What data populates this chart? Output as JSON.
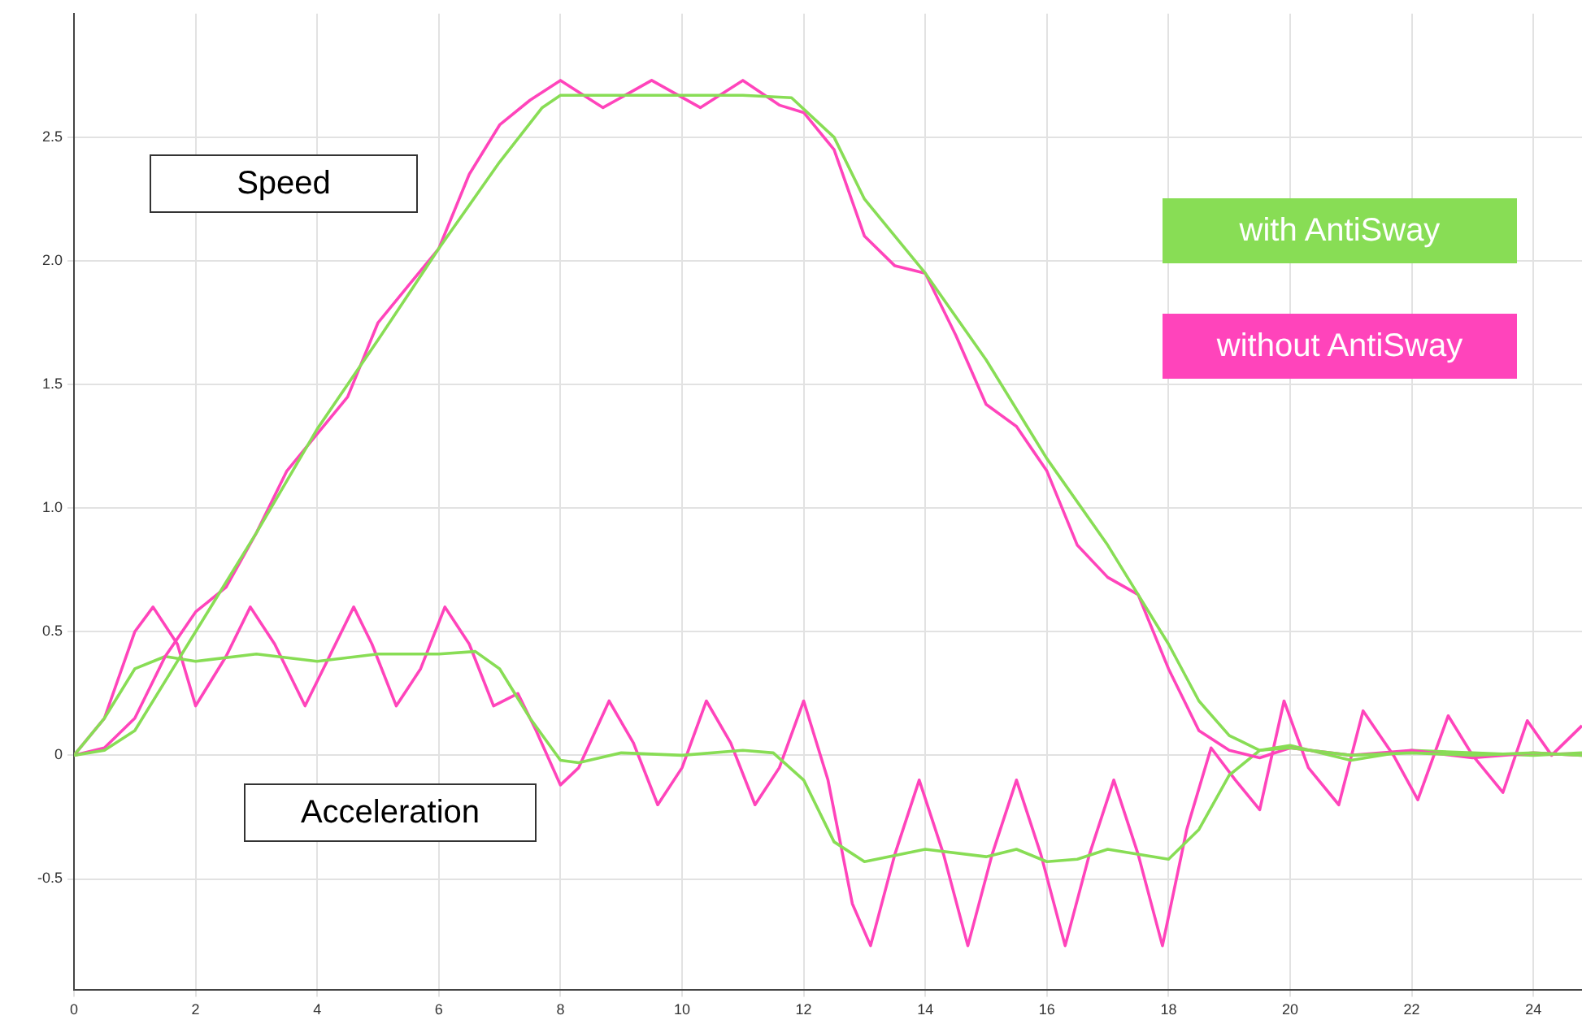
{
  "chart_data": {
    "type": "line",
    "xlim": [
      0,
      24.8
    ],
    "ylim": [
      -0.95,
      3.0
    ],
    "xticks": [
      0,
      2,
      4,
      6,
      8,
      10,
      12,
      14,
      16,
      18,
      20,
      22,
      24
    ],
    "yticks": [
      {
        "value": -0.5,
        "label": "-0.5"
      },
      0,
      0.5,
      {
        "value": 1,
        "label": "1.0"
      },
      {
        "value": 1.5,
        "label": "1.5"
      },
      {
        "value": 2,
        "label": "2.0"
      },
      2.5
    ],
    "grid": true,
    "legend": "top right",
    "marker": "none",
    "line_style": "solid",
    "annotations": [
      "Speed",
      "Acceleration"
    ],
    "series": [
      {
        "name": "with AntiSway",
        "color": "#88dd55",
        "x": [
          0,
          0.5,
          1,
          1.5,
          2,
          3,
          4,
          5,
          6,
          7,
          7.7,
          8,
          9,
          10,
          11,
          11.8,
          12.5,
          13,
          14,
          15,
          16,
          17,
          17.5,
          18,
          18.5,
          19,
          19.5,
          20,
          21,
          22,
          23,
          24,
          24.8
        ],
        "values": [
          0,
          0.02,
          0.1,
          0.3,
          0.5,
          0.9,
          1.32,
          1.68,
          2.05,
          2.4,
          2.62,
          2.67,
          2.67,
          2.67,
          2.67,
          2.66,
          2.5,
          2.25,
          1.95,
          1.6,
          1.2,
          0.85,
          0.65,
          0.45,
          0.22,
          0.08,
          0.02,
          0.03,
          0,
          0.01,
          0,
          0.01,
          0
        ]
      },
      {
        "name": "without AntiSway",
        "color": "#ff44bb",
        "x": [
          0,
          0.5,
          1,
          1.5,
          2,
          2.5,
          3,
          3.5,
          4,
          4.5,
          5,
          5.5,
          6,
          6.5,
          7,
          7.5,
          8,
          8.7,
          9.5,
          10.3,
          11,
          11.6,
          12,
          12.5,
          13,
          13.5,
          14,
          14.5,
          15,
          15.5,
          16,
          16.5,
          17,
          17.5,
          18,
          18.5,
          19,
          19.5,
          20,
          21,
          22,
          23,
          24,
          24.8
        ],
        "values": [
          0,
          0.03,
          0.15,
          0.4,
          0.58,
          0.68,
          0.9,
          1.15,
          1.3,
          1.45,
          1.75,
          1.9,
          2.05,
          2.35,
          2.55,
          2.65,
          2.73,
          2.62,
          2.73,
          2.62,
          2.73,
          2.63,
          2.6,
          2.45,
          2.1,
          1.98,
          1.95,
          1.7,
          1.42,
          1.33,
          1.15,
          0.85,
          0.72,
          0.65,
          0.35,
          0.1,
          0.02,
          -0.01,
          0.03,
          0,
          0.02,
          -0.01,
          0.01,
          0
        ]
      },
      {
        "color": "#88dd55",
        "x": [
          0,
          0.5,
          1,
          1.5,
          2,
          3,
          4,
          5,
          6,
          6.6,
          7,
          7.5,
          8,
          8.3,
          9,
          10,
          11,
          11.5,
          12,
          12.5,
          13,
          14,
          15,
          15.5,
          16,
          16.5,
          17,
          18,
          18.5,
          19,
          19.5,
          20,
          21,
          22,
          23,
          24,
          24.8
        ],
        "values": [
          0,
          0.15,
          0.35,
          0.4,
          0.38,
          0.41,
          0.38,
          0.41,
          0.41,
          0.42,
          0.35,
          0.15,
          -0.02,
          -0.03,
          0.01,
          0,
          0.02,
          0.01,
          -0.1,
          -0.35,
          -0.43,
          -0.38,
          -0.41,
          -0.38,
          -0.43,
          -0.42,
          -0.38,
          -0.42,
          -0.3,
          -0.08,
          0.02,
          0.04,
          -0.02,
          0.02,
          0.01,
          0,
          0.01
        ]
      },
      {
        "color": "#ff44bb",
        "x": [
          0,
          0.5,
          1,
          1.3,
          1.7,
          2,
          2.5,
          2.9,
          3.3,
          3.8,
          4.1,
          4.6,
          4.9,
          5.3,
          5.7,
          6.1,
          6.5,
          6.9,
          7.3,
          7.6,
          8,
          8.3,
          8.8,
          9.2,
          9.6,
          10,
          10.4,
          10.8,
          11.2,
          11.6,
          12,
          12.4,
          12.8,
          13.1,
          13.5,
          13.9,
          14.3,
          14.7,
          15.1,
          15.5,
          15.9,
          16.3,
          16.7,
          17.1,
          17.5,
          17.9,
          18.3,
          18.7,
          19.1,
          19.5,
          19.9,
          20.3,
          20.8,
          21.2,
          21.7,
          22.1,
          22.6,
          23,
          23.5,
          23.9,
          24.3,
          24.8
        ],
        "values": [
          0,
          0.15,
          0.5,
          0.6,
          0.45,
          0.2,
          0.4,
          0.6,
          0.45,
          0.2,
          0.35,
          0.6,
          0.45,
          0.2,
          0.35,
          0.6,
          0.45,
          0.2,
          0.25,
          0.1,
          -0.12,
          -0.05,
          0.22,
          0.05,
          -0.2,
          -0.05,
          0.22,
          0.05,
          -0.2,
          -0.05,
          0.22,
          -0.1,
          -0.6,
          -0.77,
          -0.4,
          -0.1,
          -0.4,
          -0.77,
          -0.4,
          -0.1,
          -0.4,
          -0.77,
          -0.4,
          -0.1,
          -0.4,
          -0.77,
          -0.3,
          0.03,
          -0.1,
          -0.22,
          0.22,
          -0.05,
          -0.2,
          0.18,
          0,
          -0.18,
          0.16,
          0,
          -0.15,
          0.14,
          0,
          0.12
        ]
      }
    ]
  }
}
